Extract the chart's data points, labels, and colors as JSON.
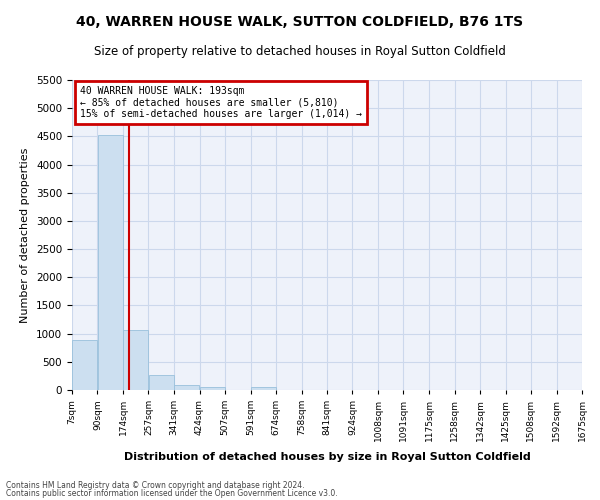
{
  "title": "40, WARREN HOUSE WALK, SUTTON COLDFIELD, B76 1TS",
  "subtitle": "Size of property relative to detached houses in Royal Sutton Coldfield",
  "xlabel": "Distribution of detached houses by size in Royal Sutton Coldfield",
  "ylabel": "Number of detached properties",
  "footnote1": "Contains HM Land Registry data © Crown copyright and database right 2024.",
  "footnote2": "Contains public sector information licensed under the Open Government Licence v3.0.",
  "annotation_line1": "40 WARREN HOUSE WALK: 193sqm",
  "annotation_line2": "← 85% of detached houses are smaller (5,810)",
  "annotation_line3": "15% of semi-detached houses are larger (1,014) →",
  "bar_bins": [
    7,
    90,
    174,
    257,
    341,
    424,
    507,
    591,
    674,
    758,
    841,
    924,
    1008,
    1091,
    1175,
    1258,
    1342,
    1425,
    1508,
    1592,
    1675
  ],
  "bar_labels": [
    "7sqm",
    "90sqm",
    "174sqm",
    "257sqm",
    "341sqm",
    "424sqm",
    "507sqm",
    "591sqm",
    "674sqm",
    "758sqm",
    "841sqm",
    "924sqm",
    "1008sqm",
    "1091sqm",
    "1175sqm",
    "1258sqm",
    "1342sqm",
    "1425sqm",
    "1508sqm",
    "1592sqm",
    "1675sqm"
  ],
  "bar_values": [
    880,
    4530,
    1070,
    270,
    90,
    60,
    0,
    60,
    0,
    0,
    0,
    0,
    0,
    0,
    0,
    0,
    0,
    0,
    0,
    0
  ],
  "bar_color": "#ccdff0",
  "bar_edge_color": "#99c0dc",
  "red_line_x": 193,
  "ylim": [
    0,
    5500
  ],
  "yticks": [
    0,
    500,
    1000,
    1500,
    2000,
    2500,
    3000,
    3500,
    4000,
    4500,
    5000,
    5500
  ],
  "title_fontsize": 10,
  "subtitle_fontsize": 8.5,
  "annotation_box_color": "#cc0000",
  "grid_color": "#ccd8ec",
  "background_color": "#eef2fa"
}
